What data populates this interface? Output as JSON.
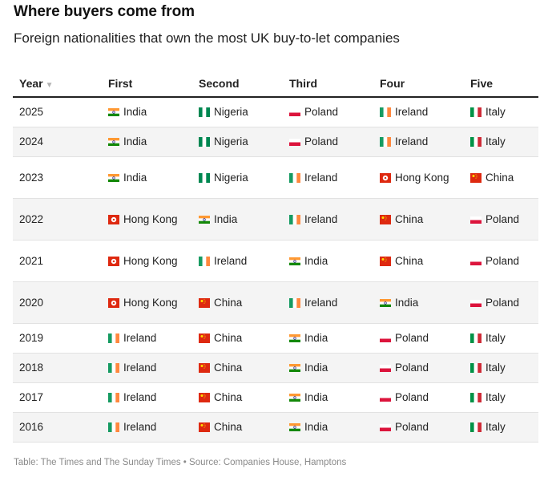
{
  "title": "Where buyers come from",
  "subtitle": "Foreign nationalities that own the most UK buy-to-let companies",
  "footer": "Table: The Times and The Sunday Times • Source: Companies House, Hamptons",
  "chart_data": {
    "type": "table",
    "columns": [
      "Year",
      "First",
      "Second",
      "Third",
      "Four",
      "Five"
    ],
    "sort": {
      "column": "Year",
      "direction": "descending"
    },
    "rows": [
      {
        "year": "2025",
        "ranks": [
          "India",
          "Nigeria",
          "Poland",
          "Ireland",
          "Italy"
        ]
      },
      {
        "year": "2024",
        "ranks": [
          "India",
          "Nigeria",
          "Poland",
          "Ireland",
          "Italy"
        ]
      },
      {
        "year": "2023",
        "ranks": [
          "India",
          "Nigeria",
          "Ireland",
          "Hong Kong",
          "China"
        ]
      },
      {
        "year": "2022",
        "ranks": [
          "Hong Kong",
          "India",
          "Ireland",
          "China",
          "Poland"
        ]
      },
      {
        "year": "2021",
        "ranks": [
          "Hong Kong",
          "Ireland",
          "India",
          "China",
          "Poland"
        ]
      },
      {
        "year": "2020",
        "ranks": [
          "Hong Kong",
          "China",
          "Ireland",
          "India",
          "Poland"
        ]
      },
      {
        "year": "2019",
        "ranks": [
          "Ireland",
          "China",
          "India",
          "Poland",
          "Italy"
        ]
      },
      {
        "year": "2018",
        "ranks": [
          "Ireland",
          "China",
          "India",
          "Poland",
          "Italy"
        ]
      },
      {
        "year": "2017",
        "ranks": [
          "Ireland",
          "China",
          "India",
          "Poland",
          "Italy"
        ]
      },
      {
        "year": "2016",
        "ranks": [
          "Ireland",
          "China",
          "India",
          "Poland",
          "Italy"
        ]
      }
    ]
  },
  "flags": {
    "India": {
      "icon": "india-flag-icon",
      "colors": [
        "#ff9933",
        "#ffffff",
        "#138808"
      ],
      "emblem": "#000080"
    },
    "Nigeria": {
      "icon": "nigeria-flag-icon",
      "colors": [
        "#008751",
        "#ffffff",
        "#008751"
      ]
    },
    "Poland": {
      "icon": "poland-flag-icon",
      "colors": [
        "#ffffff",
        "#dc143c"
      ]
    },
    "Ireland": {
      "icon": "ireland-flag-icon",
      "colors": [
        "#169b62",
        "#ffffff",
        "#ff883e"
      ]
    },
    "Italy": {
      "icon": "italy-flag-icon",
      "colors": [
        "#009246",
        "#ffffff",
        "#ce2b37"
      ]
    },
    "China": {
      "icon": "china-flag-icon",
      "colors": [
        "#de2910",
        "#ffde00"
      ]
    },
    "Hong Kong": {
      "icon": "hong-kong-flag-icon",
      "colors": [
        "#de2910",
        "#ffffff"
      ]
    }
  }
}
